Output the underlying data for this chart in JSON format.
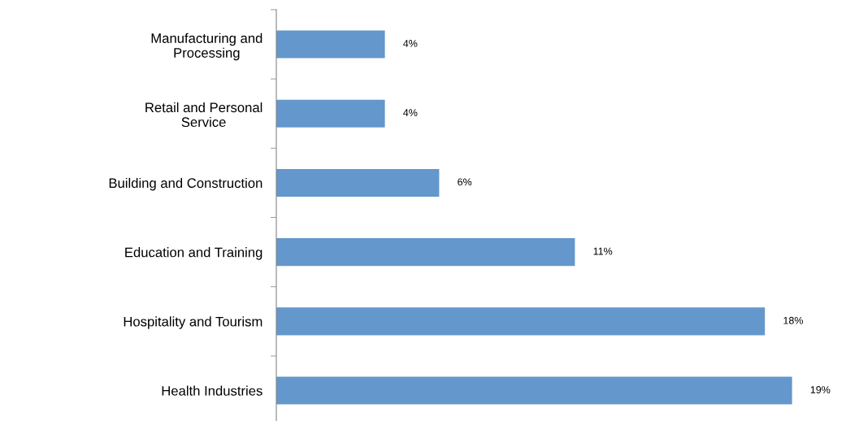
{
  "chart_data": {
    "type": "bar",
    "orientation": "horizontal",
    "relative": false,
    "categories": [
      "Manufacturing and\nProcessing",
      "Retail and Personal\nService",
      "Building and Construction",
      "Education and Training",
      "Hospitality and Tourism",
      "Health Industries"
    ],
    "values": [
      4,
      4,
      6,
      11,
      18,
      19
    ],
    "value_labels": [
      "4%",
      "4%",
      "6%",
      "11%",
      "18%",
      "19%"
    ],
    "color": "#6497cb",
    "grid": false,
    "legend": false
  }
}
